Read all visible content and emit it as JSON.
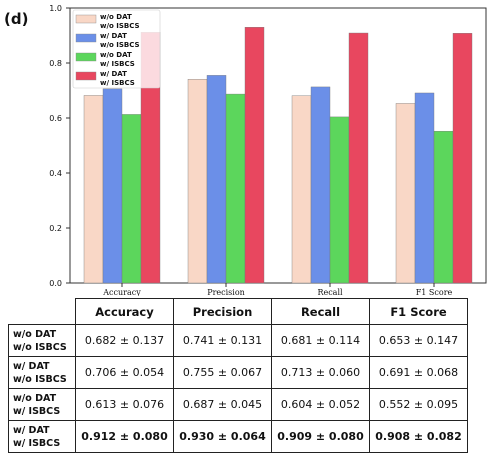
{
  "panel_label": "(d)",
  "chart_data": {
    "type": "bar",
    "categories": [
      "Accuracy",
      "Precision",
      "Recall",
      "F1 Score"
    ],
    "series": [
      {
        "name": "w/o DAT w/o ISBCS",
        "name_lines": [
          "w/o DAT",
          "w/o ISBCS"
        ],
        "color": "#f9d7c6",
        "values": [
          0.682,
          0.741,
          0.681,
          0.653
        ]
      },
      {
        "name": "w/ DAT w/o ISBCS",
        "name_lines": [
          "w/ DAT",
          "w/o ISBCS"
        ],
        "color": "#6b8fe8",
        "values": [
          0.706,
          0.755,
          0.713,
          0.691
        ]
      },
      {
        "name": "w/o DAT w/ ISBCS",
        "name_lines": [
          "w/o DAT",
          "w/ ISBCS"
        ],
        "color": "#5cd65c",
        "values": [
          0.613,
          0.687,
          0.604,
          0.552
        ]
      },
      {
        "name": "w/ DAT w/ ISBCS",
        "name_lines": [
          "w/ DAT",
          "w/ ISBCS"
        ],
        "color": "#e8475f",
        "values": [
          0.912,
          0.93,
          0.909,
          0.908
        ]
      }
    ],
    "ylim": [
      0,
      1.0
    ],
    "yticks": [
      "0.0",
      "0.2",
      "0.4",
      "0.6",
      "0.8",
      "1.0"
    ],
    "title": "",
    "xlabel": "",
    "ylabel": "",
    "grid": false,
    "legend_position": "top-left"
  },
  "table": {
    "headers": [
      "Accuracy",
      "Precision",
      "Recall",
      "F1 Score"
    ],
    "rows": [
      {
        "label_lines": [
          "w/o DAT",
          "w/o ISBCS"
        ],
        "cells": [
          "0.682 ± 0.137",
          "0.741 ± 0.131",
          "0.681 ± 0.114",
          "0.653 ± 0.147"
        ],
        "bold": false
      },
      {
        "label_lines": [
          "w/ DAT",
          "w/o ISBCS"
        ],
        "cells": [
          "0.706 ± 0.054",
          "0.755 ± 0.067",
          "0.713 ± 0.060",
          "0.691 ± 0.068"
        ],
        "bold": false
      },
      {
        "label_lines": [
          "w/o DAT",
          "w/ ISBCS"
        ],
        "cells": [
          "0.613 ± 0.076",
          "0.687 ± 0.045",
          "0.604 ± 0.052",
          "0.552 ± 0.095"
        ],
        "bold": false
      },
      {
        "label_lines": [
          "w/ DAT",
          "w/ ISBCS"
        ],
        "cells": [
          "0.912 ± 0.080",
          "0.930 ± 0.064",
          "0.909 ± 0.080",
          "0.908 ± 0.082"
        ],
        "bold": true
      }
    ]
  }
}
